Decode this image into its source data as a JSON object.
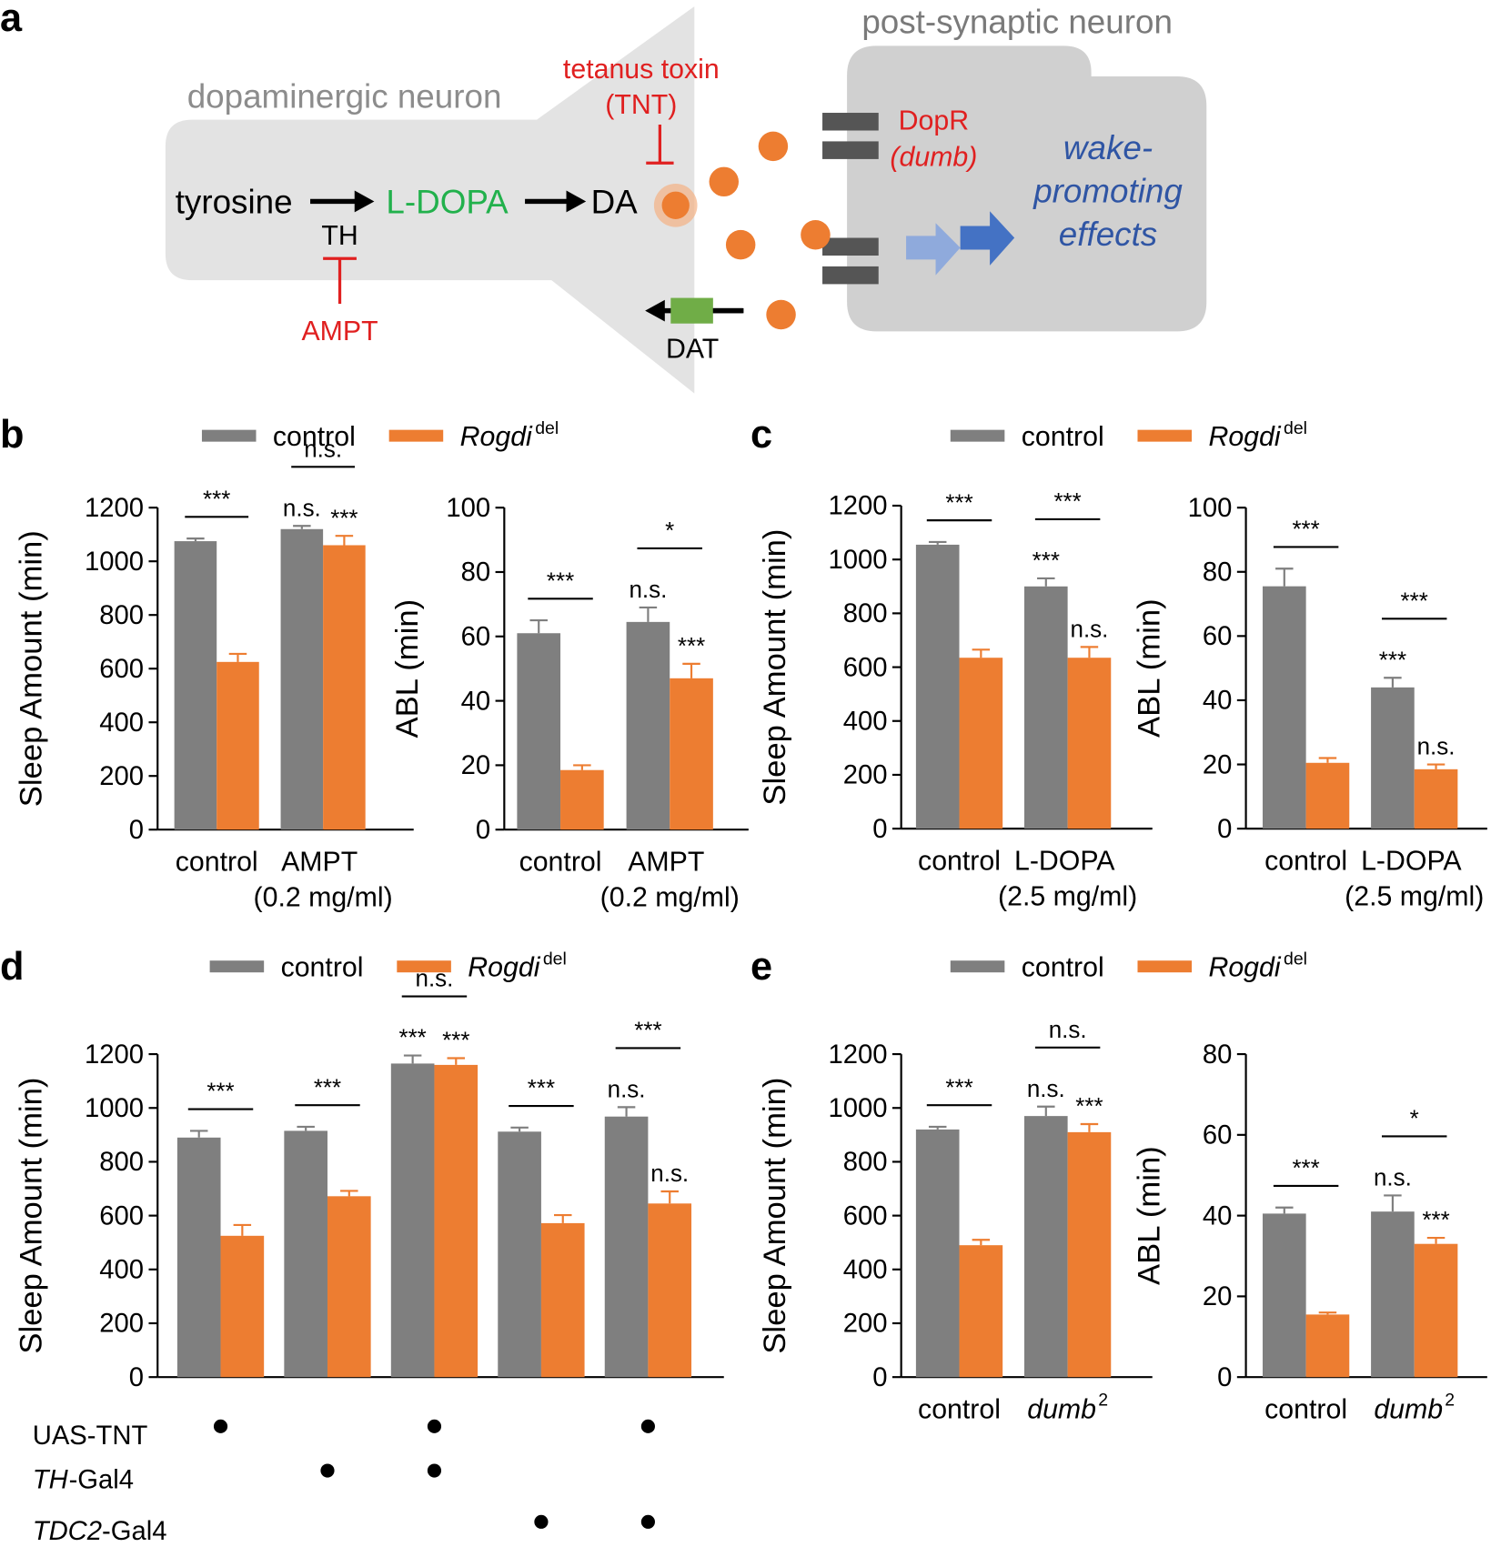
{
  "diagram": {
    "panel": "a",
    "left_cell": "dopaminergic neuron",
    "right_cell": "post-synaptic neuron",
    "substrate": "tyrosine",
    "intermediate": "L-DOPA",
    "product": "DA",
    "enzyme": "TH",
    "enzyme_inhibitor": "AMPT",
    "toxin": "tetanus toxin",
    "toxin_abbr": "(TNT)",
    "receptor": "DopR",
    "receptor_gene": "(dumb)",
    "effect": [
      "wake-",
      "promoting",
      "effects"
    ],
    "transporter": "DAT"
  },
  "chart_data": [
    {
      "type": "bar",
      "panel": "b",
      "ylabel": "Sleep Amount (min)",
      "categories": [
        "control",
        "AMPT (0.2 mg/ml)"
      ],
      "ylim": [
        0,
        1200
      ],
      "yticks": [
        0,
        200,
        400,
        600,
        800,
        1000,
        1200
      ],
      "series": [
        {
          "name": "control",
          "color": "#7f7f7f",
          "values": [
            1075,
            1120
          ],
          "errors": [
            10,
            12
          ],
          "labels": [
            null,
            "n.s."
          ]
        },
        {
          "name": "Rogdi",
          "name_sup": "del",
          "color": "#ed7d31",
          "values": [
            625,
            1060
          ],
          "errors": [
            30,
            35
          ],
          "labels": [
            null,
            "***"
          ]
        }
      ],
      "brackets": [
        "***",
        "n.s."
      ]
    },
    {
      "type": "bar",
      "ylabel": "ABL (min)",
      "categories": [
        "control",
        "AMPT (0.2 mg/ml)"
      ],
      "ylim": [
        0,
        100
      ],
      "yticks": [
        0,
        20,
        40,
        60,
        80,
        100
      ],
      "series": [
        {
          "color": "#7f7f7f",
          "values": [
            61,
            64.5
          ],
          "errors": [
            4,
            4.5
          ],
          "labels": [
            null,
            "n.s."
          ]
        },
        {
          "color": "#ed7d31",
          "values": [
            18.5,
            47
          ],
          "errors": [
            1.5,
            4.5
          ],
          "labels": [
            null,
            "***"
          ]
        }
      ],
      "brackets": [
        "***",
        "*"
      ]
    },
    {
      "type": "bar",
      "panel": "c",
      "ylabel": "Sleep Amount (min)",
      "categories": [
        "control",
        "L-DOPA (2.5 mg/ml)"
      ],
      "ylim": [
        0,
        1200
      ],
      "yticks": [
        0,
        200,
        400,
        600,
        800,
        1000,
        1200
      ],
      "series": [
        {
          "name": "control",
          "color": "#7f7f7f",
          "values": [
            1055,
            900
          ],
          "errors": [
            10,
            30
          ],
          "labels": [
            null,
            "***"
          ]
        },
        {
          "name": "Rogdi",
          "name_sup": "del",
          "color": "#ed7d31",
          "values": [
            635,
            635
          ],
          "errors": [
            30,
            40
          ],
          "labels": [
            null,
            "n.s."
          ]
        }
      ],
      "brackets": [
        "***",
        "***"
      ]
    },
    {
      "type": "bar",
      "ylabel": "ABL (min)",
      "categories": [
        "control",
        "L-DOPA (2.5 mg/ml)"
      ],
      "ylim": [
        0,
        100
      ],
      "yticks": [
        0,
        20,
        40,
        60,
        80,
        100
      ],
      "series": [
        {
          "color": "#7f7f7f",
          "values": [
            75.5,
            44
          ],
          "errors": [
            5.5,
            3
          ],
          "labels": [
            null,
            "***"
          ]
        },
        {
          "color": "#ed7d31",
          "values": [
            20.5,
            18.5
          ],
          "errors": [
            1.5,
            1.5
          ],
          "labels": [
            null,
            "n.s."
          ]
        }
      ],
      "brackets": [
        "***",
        "***"
      ]
    },
    {
      "type": "bar",
      "panel": "d",
      "ylabel": "Sleep Amount (min)",
      "categories": [
        null,
        null,
        null,
        null,
        null
      ],
      "ylim": [
        0,
        1200
      ],
      "yticks": [
        0,
        200,
        400,
        600,
        800,
        1000,
        1200
      ],
      "series": [
        {
          "name": "control",
          "color": "#7f7f7f",
          "values": [
            890,
            915,
            1165,
            912,
            968
          ],
          "errors": [
            25,
            15,
            30,
            15,
            35
          ],
          "labels": [
            null,
            null,
            "***",
            null,
            "n.s."
          ]
        },
        {
          "name": "Rogdi",
          "name_sup": "del",
          "color": "#ed7d31",
          "values": [
            525,
            672,
            1160,
            572,
            645
          ],
          "errors": [
            40,
            20,
            25,
            30,
            45
          ],
          "labels": [
            null,
            null,
            "***",
            null,
            "n.s."
          ]
        }
      ],
      "brackets": [
        "***",
        "***",
        "n.s.",
        "***",
        "***"
      ],
      "conditions": [
        {
          "label": "UAS-TNT",
          "values": [
            1,
            0,
            1,
            0,
            1
          ]
        },
        {
          "italic": "TH",
          "label": "-Gal4",
          "values": [
            0,
            1,
            1,
            0,
            0
          ]
        },
        {
          "italic": "TDC2",
          "label": "-Gal4",
          "values": [
            0,
            0,
            0,
            1,
            1
          ]
        }
      ]
    },
    {
      "type": "bar",
      "panel": "e",
      "ylabel": "Sleep Amount (min)",
      "categories": [
        "control",
        "dumb"
      ],
      "category_italic": [
        false,
        true
      ],
      "category_sup": [
        null,
        "2"
      ],
      "ylim": [
        0,
        1200
      ],
      "yticks": [
        0,
        200,
        400,
        600,
        800,
        1000,
        1200
      ],
      "series": [
        {
          "name": "control",
          "color": "#7f7f7f",
          "values": [
            920,
            970
          ],
          "errors": [
            10,
            35
          ],
          "labels": [
            null,
            "n.s."
          ]
        },
        {
          "name": "Rogdi",
          "name_sup": "del",
          "color": "#ed7d31",
          "values": [
            490,
            910
          ],
          "errors": [
            20,
            30
          ],
          "labels": [
            null,
            "***"
          ]
        }
      ],
      "brackets": [
        "***",
        "n.s."
      ]
    },
    {
      "type": "bar",
      "ylabel": "ABL (min)",
      "categories": [
        "control",
        "dumb"
      ],
      "category_italic": [
        false,
        true
      ],
      "category_sup": [
        null,
        "2"
      ],
      "ylim": [
        0,
        80
      ],
      "yticks": [
        0,
        20,
        40,
        60,
        80
      ],
      "series": [
        {
          "color": "#7f7f7f",
          "values": [
            40.5,
            41
          ],
          "errors": [
            1.5,
            4
          ],
          "labels": [
            null,
            "n.s."
          ]
        },
        {
          "color": "#ed7d31",
          "values": [
            15.5,
            33
          ],
          "errors": [
            0.5,
            1.5
          ],
          "labels": [
            null,
            "***"
          ]
        }
      ],
      "brackets": [
        "***",
        "*"
      ]
    }
  ]
}
